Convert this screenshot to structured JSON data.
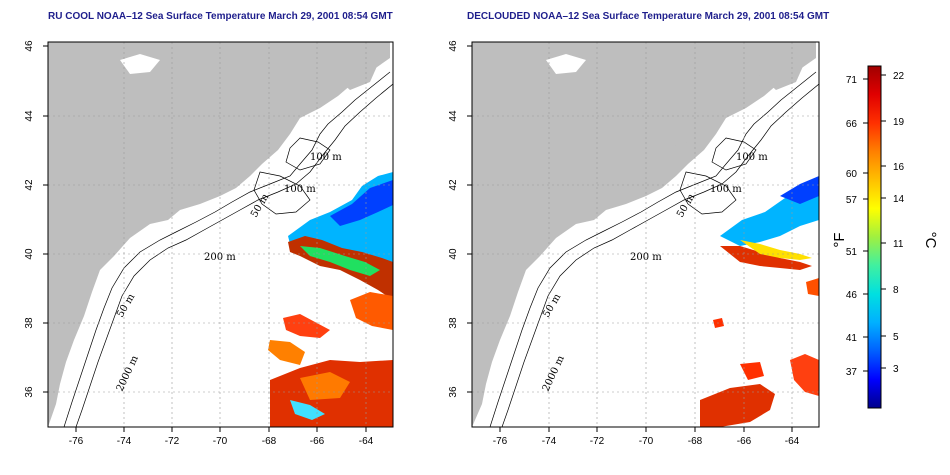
{
  "maps": [
    {
      "title": "RU COOL NOAA–12 Sea Surface Temperature March 29, 2001 08:54 GMT",
      "x_ticks": [
        "-76",
        "-74",
        "-72",
        "-70",
        "-68",
        "-66",
        "-64"
      ],
      "y_ticks": [
        "46",
        "44",
        "42",
        "40",
        "38",
        "36"
      ],
      "contour_labels": [
        "100 m",
        "100 m",
        "50 m",
        "200 m",
        "50 m",
        "2000 m"
      ]
    },
    {
      "title": "DECLOUDED NOAA–12 Sea Surface Temperature March 29, 2001 08:54 GMT",
      "x_ticks": [
        "-76",
        "-74",
        "-72",
        "-70",
        "-68",
        "-66",
        "-64"
      ],
      "y_ticks": [
        "46",
        "44",
        "42",
        "40",
        "38",
        "36"
      ],
      "contour_labels": [
        "100 m",
        "100 m",
        "50 m",
        "200 m",
        "50 m",
        "2000 m"
      ]
    }
  ],
  "colorbar": {
    "fahrenheit_label": "°F",
    "celsius_label": "°C",
    "fahrenheit_ticks": [
      "71",
      "66",
      "60",
      "57",
      "51",
      "46",
      "41",
      "37"
    ],
    "celsius_ticks": [
      "22",
      "19",
      "16",
      "14",
      "11",
      "8",
      "5",
      "3"
    ],
    "colors": [
      "#00008c",
      "#0000ff",
      "#0060ff",
      "#00b0ff",
      "#00e0e0",
      "#40f0a0",
      "#a0f040",
      "#ffff00",
      "#ffc000",
      "#ff8000",
      "#ff3000",
      "#e00000",
      "#a00000"
    ]
  },
  "style": {
    "land": "#bebebe",
    "ocean": "#ffffff",
    "grid": "#9a9a9a",
    "title_color": "#1e1e8c"
  }
}
